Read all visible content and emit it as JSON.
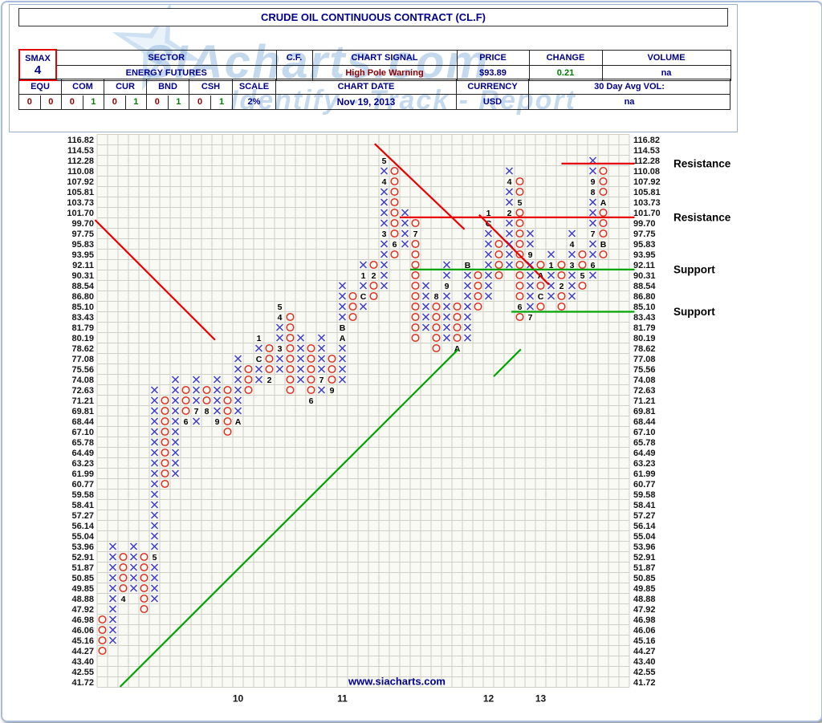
{
  "header": {
    "title": "CRUDE OIL CONTINUOUS CONTRACT (CL.F)",
    "smax_label": "SMAX",
    "smax_value": "4",
    "sector_label": "SECTOR",
    "sector_value": "ENERGY FUTURES",
    "cf_label": "C.F.",
    "signal_label": "CHART SIGNAL",
    "signal_value": "High Pole Warning",
    "price_label": "PRICE",
    "price_value": "$93.89",
    "change_label": "CHANGE",
    "change_value": "0.21",
    "volume_label": "VOLUME",
    "volume_value": "na",
    "flags": [
      {
        "label": "EQU",
        "v1": "0",
        "v2": "0"
      },
      {
        "label": "COM",
        "v1": "0",
        "v2": "1"
      },
      {
        "label": "CUR",
        "v1": "0",
        "v2": "1"
      },
      {
        "label": "BND",
        "v1": "0",
        "v2": "1"
      },
      {
        "label": "CSH",
        "v1": "0",
        "v2": "1"
      }
    ],
    "scale_label": "SCALE",
    "scale_value": "2%",
    "date_label": "CHART DATE",
    "date_value": "Nov 19, 2013",
    "currency_label": "CURRENCY",
    "currency_value": "USD",
    "avgvol_label": "30 Day Avg VOL:",
    "avgvol_value": "na",
    "watermark_line1": "SIAcharts.com",
    "watermark_line2": "Identify - Track - Report"
  },
  "chart_data": {
    "type": "point-and-figure",
    "title": "CRUDE OIL CONTINUOUS CONTRACT (CL.F)",
    "box_scale": "2%",
    "currency": "USD",
    "footer": "www.siacharts.com",
    "prices": [
      "41.72",
      "42.55",
      "43.40",
      "44.27",
      "45.16",
      "46.06",
      "46.98",
      "47.92",
      "48.88",
      "49.85",
      "50.85",
      "51.87",
      "52.91",
      "53.96",
      "55.04",
      "56.14",
      "57.27",
      "58.41",
      "59.58",
      "60.77",
      "61.99",
      "63.23",
      "64.49",
      "65.78",
      "67.10",
      "68.44",
      "69.81",
      "71.21",
      "72.63",
      "74.08",
      "75.56",
      "77.08",
      "78.62",
      "80.19",
      "81.79",
      "83.43",
      "85.10",
      "86.80",
      "88.54",
      "90.31",
      "92.11",
      "93.95",
      "95.83",
      "97.75",
      "99.70",
      "101.70",
      "103.73",
      "105.81",
      "107.92",
      "110.08",
      "112.28",
      "114.53",
      "116.82"
    ],
    "ylim": [
      41.72,
      116.82
    ],
    "columns": [
      {
        "t": "O",
        "b": 3,
        "e": 6
      },
      {
        "t": "X",
        "b": 4,
        "e": 13
      },
      {
        "t": "O",
        "b": 8,
        "e": 12,
        "l": {
          "8": "4"
        }
      },
      {
        "t": "X",
        "b": 9,
        "e": 13
      },
      {
        "t": "O",
        "b": 7,
        "e": 12
      },
      {
        "t": "X",
        "b": 8,
        "e": 28,
        "l": {
          "12": "5"
        }
      },
      {
        "t": "O",
        "b": 19,
        "e": 27
      },
      {
        "t": "X",
        "b": 20,
        "e": 29
      },
      {
        "t": "O",
        "b": 25,
        "e": 28,
        "l": {
          "25": "6"
        }
      },
      {
        "t": "X",
        "b": 25,
        "e": 29,
        "l": {
          "26": "7"
        }
      },
      {
        "t": "O",
        "b": 26,
        "e": 28,
        "l": {
          "26": "8"
        }
      },
      {
        "t": "X",
        "b": 25,
        "e": 29,
        "l": {
          "25": "9"
        }
      },
      {
        "t": "O",
        "b": 24,
        "e": 28
      },
      {
        "t": "X",
        "b": 25,
        "e": 31,
        "l": {
          "25": "A"
        }
      },
      {
        "t": "O",
        "b": 28,
        "e": 30
      },
      {
        "t": "X",
        "b": 29,
        "e": 33,
        "l": {
          "31": "C",
          "33": "1"
        }
      },
      {
        "t": "O",
        "b": 29,
        "e": 32,
        "l": {
          "29": "2"
        }
      },
      {
        "t": "X",
        "b": 30,
        "e": 36,
        "l": {
          "32": "3",
          "35": "4",
          "36": "5"
        }
      },
      {
        "t": "O",
        "b": 28,
        "e": 35
      },
      {
        "t": "X",
        "b": 29,
        "e": 33
      },
      {
        "t": "O",
        "b": 27,
        "e": 32,
        "l": {
          "27": "6"
        }
      },
      {
        "t": "X",
        "b": 28,
        "e": 33,
        "l": {
          "29": "7"
        }
      },
      {
        "t": "O",
        "b": 28,
        "e": 31,
        "l": {
          "28": "9"
        }
      },
      {
        "t": "X",
        "b": 29,
        "e": 38,
        "l": {
          "33": "A",
          "34": "B"
        }
      },
      {
        "t": "O",
        "b": 35,
        "e": 37
      },
      {
        "t": "X",
        "b": 36,
        "e": 40,
        "l": {
          "37": "C",
          "39": "1"
        }
      },
      {
        "t": "O",
        "b": 37,
        "e": 40,
        "l": {
          "39": "2"
        }
      },
      {
        "t": "X",
        "b": 38,
        "e": 50,
        "l": {
          "43": "3",
          "48": "4",
          "50": "5"
        }
      },
      {
        "t": "O",
        "b": 41,
        "e": 49,
        "l": {
          "42": "6"
        }
      },
      {
        "t": "X",
        "b": 42,
        "e": 45
      },
      {
        "t": "O",
        "b": 33,
        "e": 44,
        "l": {
          "43": "7"
        }
      },
      {
        "t": "X",
        "b": 34,
        "e": 38
      },
      {
        "t": "O",
        "b": 32,
        "e": 37,
        "l": {
          "37": "8"
        }
      },
      {
        "t": "X",
        "b": 33,
        "e": 40,
        "l": {
          "38": "9"
        }
      },
      {
        "t": "O",
        "b": 32,
        "e": 36,
        "l": {
          "32": "A"
        }
      },
      {
        "t": "X",
        "b": 33,
        "e": 40,
        "l": {
          "40": "B"
        }
      },
      {
        "t": "O",
        "b": 36,
        "e": 39
      },
      {
        "t": "X",
        "b": 37,
        "e": 45,
        "l": {
          "44": "C",
          "45": "1"
        }
      },
      {
        "t": "O",
        "b": 39,
        "e": 42
      },
      {
        "t": "X",
        "b": 40,
        "e": 49,
        "l": {
          "45": "2",
          "48": "4"
        }
      },
      {
        "t": "O",
        "b": 35,
        "e": 48,
        "l": {
          "46": "5",
          "36": "6"
        }
      },
      {
        "t": "X",
        "b": 35,
        "e": 43,
        "l": {
          "35": "7",
          "41": "9"
        }
      },
      {
        "t": "O",
        "b": 36,
        "e": 40,
        "l": {
          "39": "A",
          "37": "C"
        }
      },
      {
        "t": "X",
        "b": 37,
        "e": 41,
        "l": {
          "40": "1"
        }
      },
      {
        "t": "O",
        "b": 36,
        "e": 40,
        "l": {
          "38": "2"
        }
      },
      {
        "t": "X",
        "b": 37,
        "e": 43,
        "l": {
          "40": "3",
          "42": "4"
        }
      },
      {
        "t": "O",
        "b": 38,
        "e": 41,
        "l": {
          "39": "5"
        }
      },
      {
        "t": "X",
        "b": 39,
        "e": 50,
        "l": {
          "40": "6",
          "43": "7",
          "47": "8",
          "48": "9"
        }
      },
      {
        "t": "O",
        "b": 41,
        "e": 49,
        "l": {
          "46": "A",
          "42": "B"
        }
      }
    ],
    "year_labels": [
      {
        "text": "10",
        "col": 13
      },
      {
        "text": "11",
        "col": 23
      },
      {
        "text": "12",
        "col": 37
      },
      {
        "text": "13",
        "col": 42
      }
    ],
    "trendlines": [
      {
        "c1": -0.2,
        "p1": 44.3,
        "c2": 11.3,
        "p2": 32.8,
        "kind": "res"
      },
      {
        "c1": 26.6,
        "p1": 51.6,
        "c2": 35.2,
        "p2": 43.4,
        "kind": "res"
      },
      {
        "c1": 36.6,
        "p1": 44.8,
        "c2": 43.3,
        "p2": 38.1,
        "kind": "res"
      },
      {
        "c1": 2.2,
        "p1": -0.45,
        "c2": 34.6,
        "p2": 31.9,
        "kind": "sup"
      },
      {
        "c1": 38.0,
        "p1": 29.3,
        "c2": 40.6,
        "p2": 31.9,
        "kind": "sup"
      }
    ],
    "levels": [
      {
        "p": 49.7,
        "c1": 44.5,
        "c2": 51.5,
        "kind": "res",
        "label": "Resistance"
      },
      {
        "p": 44.55,
        "c1": 29.0,
        "c2": 51.5,
        "kind": "res",
        "label": "Resistance"
      },
      {
        "p": 39.55,
        "c1": 30.0,
        "c2": 51.5,
        "kind": "sup",
        "label": "Support"
      },
      {
        "p": 35.5,
        "c1": 39.7,
        "c2": 51.5,
        "kind": "sup",
        "label": "Support"
      }
    ],
    "colors": {
      "x": "#3c3cd2",
      "o": "#e03020",
      "month_label": "#000000",
      "grid_line": "#cfcfc6",
      "plot_bg": "#fafaf5",
      "resistance": "#e80000",
      "support": "#00a400",
      "axis_text": "#141414",
      "footer": "#00008b"
    }
  }
}
